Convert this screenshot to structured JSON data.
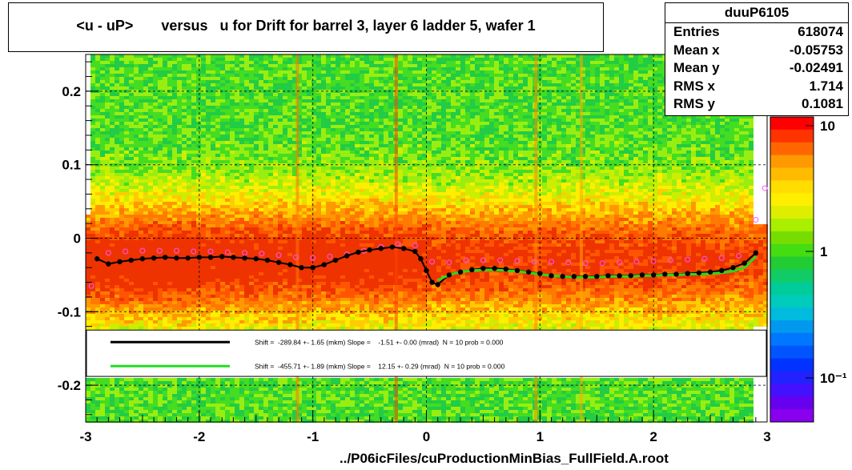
{
  "title": "<u - uP>       versus   u for Drift for barrel 3, layer 6 ladder 5, wafer 1",
  "stats": {
    "name": "duuP6105",
    "rows": [
      {
        "label": "Entries",
        "value": "618074"
      },
      {
        "label": "Mean x",
        "value": "-0.05753"
      },
      {
        "label": "Mean y",
        "value": "-0.02491"
      },
      {
        "label": "RMS x",
        "value": "1.714"
      },
      {
        "label": "RMS y",
        "value": "0.1081"
      }
    ]
  },
  "footer": "../P06icFiles/cuProductionMinBias_FullField.A.root",
  "legend": [
    {
      "color": "#000000",
      "text": "Shift =  -289.84 +- 1.65 (mkm) Slope =    -1.51 +- 0.00 (mrad)  N = 10 prob = 0.000"
    },
    {
      "color": "#22dd22",
      "text": "Shift =  -455.71 +- 1.89 (mkm) Slope =    12.15 +- 0.29 (mrad)  N = 10 prob = 0.000"
    }
  ],
  "colorbar": {
    "labels": [
      "10",
      "1",
      "10⁻¹"
    ]
  },
  "chart_data": {
    "type": "heatmap",
    "xlim": [
      -3,
      3
    ],
    "ylim": [
      -0.25,
      0.25
    ],
    "x_ticks": [
      "-3",
      "-2",
      "-1",
      "0",
      "1",
      "2",
      "3"
    ],
    "y_ticks": [
      "0.2",
      "0.1",
      "0",
      "-0.1",
      "-0.2"
    ],
    "grid": true,
    "series": [
      {
        "color": "#000000",
        "marker": "filled-circle",
        "x": [
          -2.9,
          -2.8,
          -2.7,
          -2.6,
          -2.5,
          -2.4,
          -2.3,
          -2.2,
          -2.1,
          -2.0,
          -1.9,
          -1.8,
          -1.7,
          -1.6,
          -1.5,
          -1.4,
          -1.3,
          -1.2,
          -1.1,
          -1.0,
          -0.9,
          -0.8,
          -0.7,
          -0.6,
          -0.5,
          -0.4,
          -0.3,
          -0.2,
          -0.1,
          -0.05,
          0.0,
          0.05,
          0.1,
          0.2,
          0.3,
          0.4,
          0.5,
          0.6,
          0.7,
          0.8,
          0.9,
          1.0,
          1.1,
          1.2,
          1.3,
          1.4,
          1.5,
          1.6,
          1.7,
          1.8,
          1.9,
          2.0,
          2.1,
          2.2,
          2.3,
          2.4,
          2.5,
          2.6,
          2.7,
          2.8,
          2.9
        ],
        "y": [
          -0.028,
          -0.035,
          -0.032,
          -0.03,
          -0.028,
          -0.027,
          -0.026,
          -0.027,
          -0.027,
          -0.026,
          -0.026,
          -0.025,
          -0.026,
          -0.027,
          -0.028,
          -0.03,
          -0.033,
          -0.036,
          -0.04,
          -0.04,
          -0.036,
          -0.03,
          -0.024,
          -0.019,
          -0.016,
          -0.014,
          -0.012,
          -0.014,
          -0.018,
          -0.028,
          -0.044,
          -0.06,
          -0.063,
          -0.05,
          -0.046,
          -0.043,
          -0.041,
          -0.041,
          -0.042,
          -0.044,
          -0.046,
          -0.048,
          -0.051,
          -0.052,
          -0.052,
          -0.052,
          -0.052,
          -0.051,
          -0.051,
          -0.051,
          -0.05,
          -0.05,
          -0.049,
          -0.049,
          -0.048,
          -0.047,
          -0.046,
          -0.044,
          -0.04,
          -0.034,
          -0.02
        ]
      },
      {
        "color": "#22dd22",
        "marker": "line",
        "x": [
          0.1,
          0.2,
          0.3,
          0.4,
          0.5,
          0.6,
          0.7,
          0.8,
          0.9,
          1.0,
          1.1,
          1.2,
          1.3,
          1.4,
          1.5,
          1.6,
          1.7,
          1.8,
          1.9,
          2.0,
          2.1,
          2.2,
          2.3,
          2.4,
          2.5,
          2.6,
          2.7,
          2.8,
          2.9
        ],
        "y": [
          -0.057,
          -0.05,
          -0.046,
          -0.044,
          -0.043,
          -0.043,
          -0.044,
          -0.045,
          -0.047,
          -0.049,
          -0.051,
          -0.052,
          -0.053,
          -0.053,
          -0.053,
          -0.052,
          -0.052,
          -0.052,
          -0.051,
          -0.051,
          -0.05,
          -0.05,
          -0.049,
          -0.049,
          -0.048,
          -0.047,
          -0.045,
          -0.04,
          -0.025
        ]
      },
      {
        "color": "#ff55ff",
        "marker": "open-circle",
        "x": [
          -2.95,
          -2.8,
          -2.65,
          -2.5,
          -2.35,
          -2.2,
          -2.05,
          -1.9,
          -1.75,
          -1.6,
          -1.45,
          -1.3,
          -1.15,
          -1.0,
          -0.85,
          -0.7,
          -0.55,
          -0.4,
          -0.25,
          -0.1,
          0.05,
          0.2,
          0.35,
          0.5,
          0.65,
          0.8,
          0.95,
          1.1,
          1.25,
          1.4,
          1.55,
          1.7,
          1.85,
          2.0,
          2.15,
          2.3,
          2.45,
          2.6,
          2.75,
          2.9,
          2.98
        ],
        "y": [
          -0.065,
          -0.02,
          -0.018,
          -0.017,
          -0.017,
          -0.017,
          -0.018,
          -0.018,
          -0.019,
          -0.02,
          -0.021,
          -0.023,
          -0.026,
          -0.027,
          -0.025,
          -0.022,
          -0.017,
          -0.012,
          -0.008,
          -0.01,
          -0.032,
          -0.033,
          -0.03,
          -0.03,
          -0.03,
          -0.031,
          -0.032,
          -0.032,
          -0.033,
          -0.034,
          -0.034,
          -0.033,
          -0.032,
          -0.031,
          -0.03,
          -0.029,
          -0.028,
          -0.027,
          -0.024,
          0.025,
          0.068
        ]
      }
    ]
  }
}
